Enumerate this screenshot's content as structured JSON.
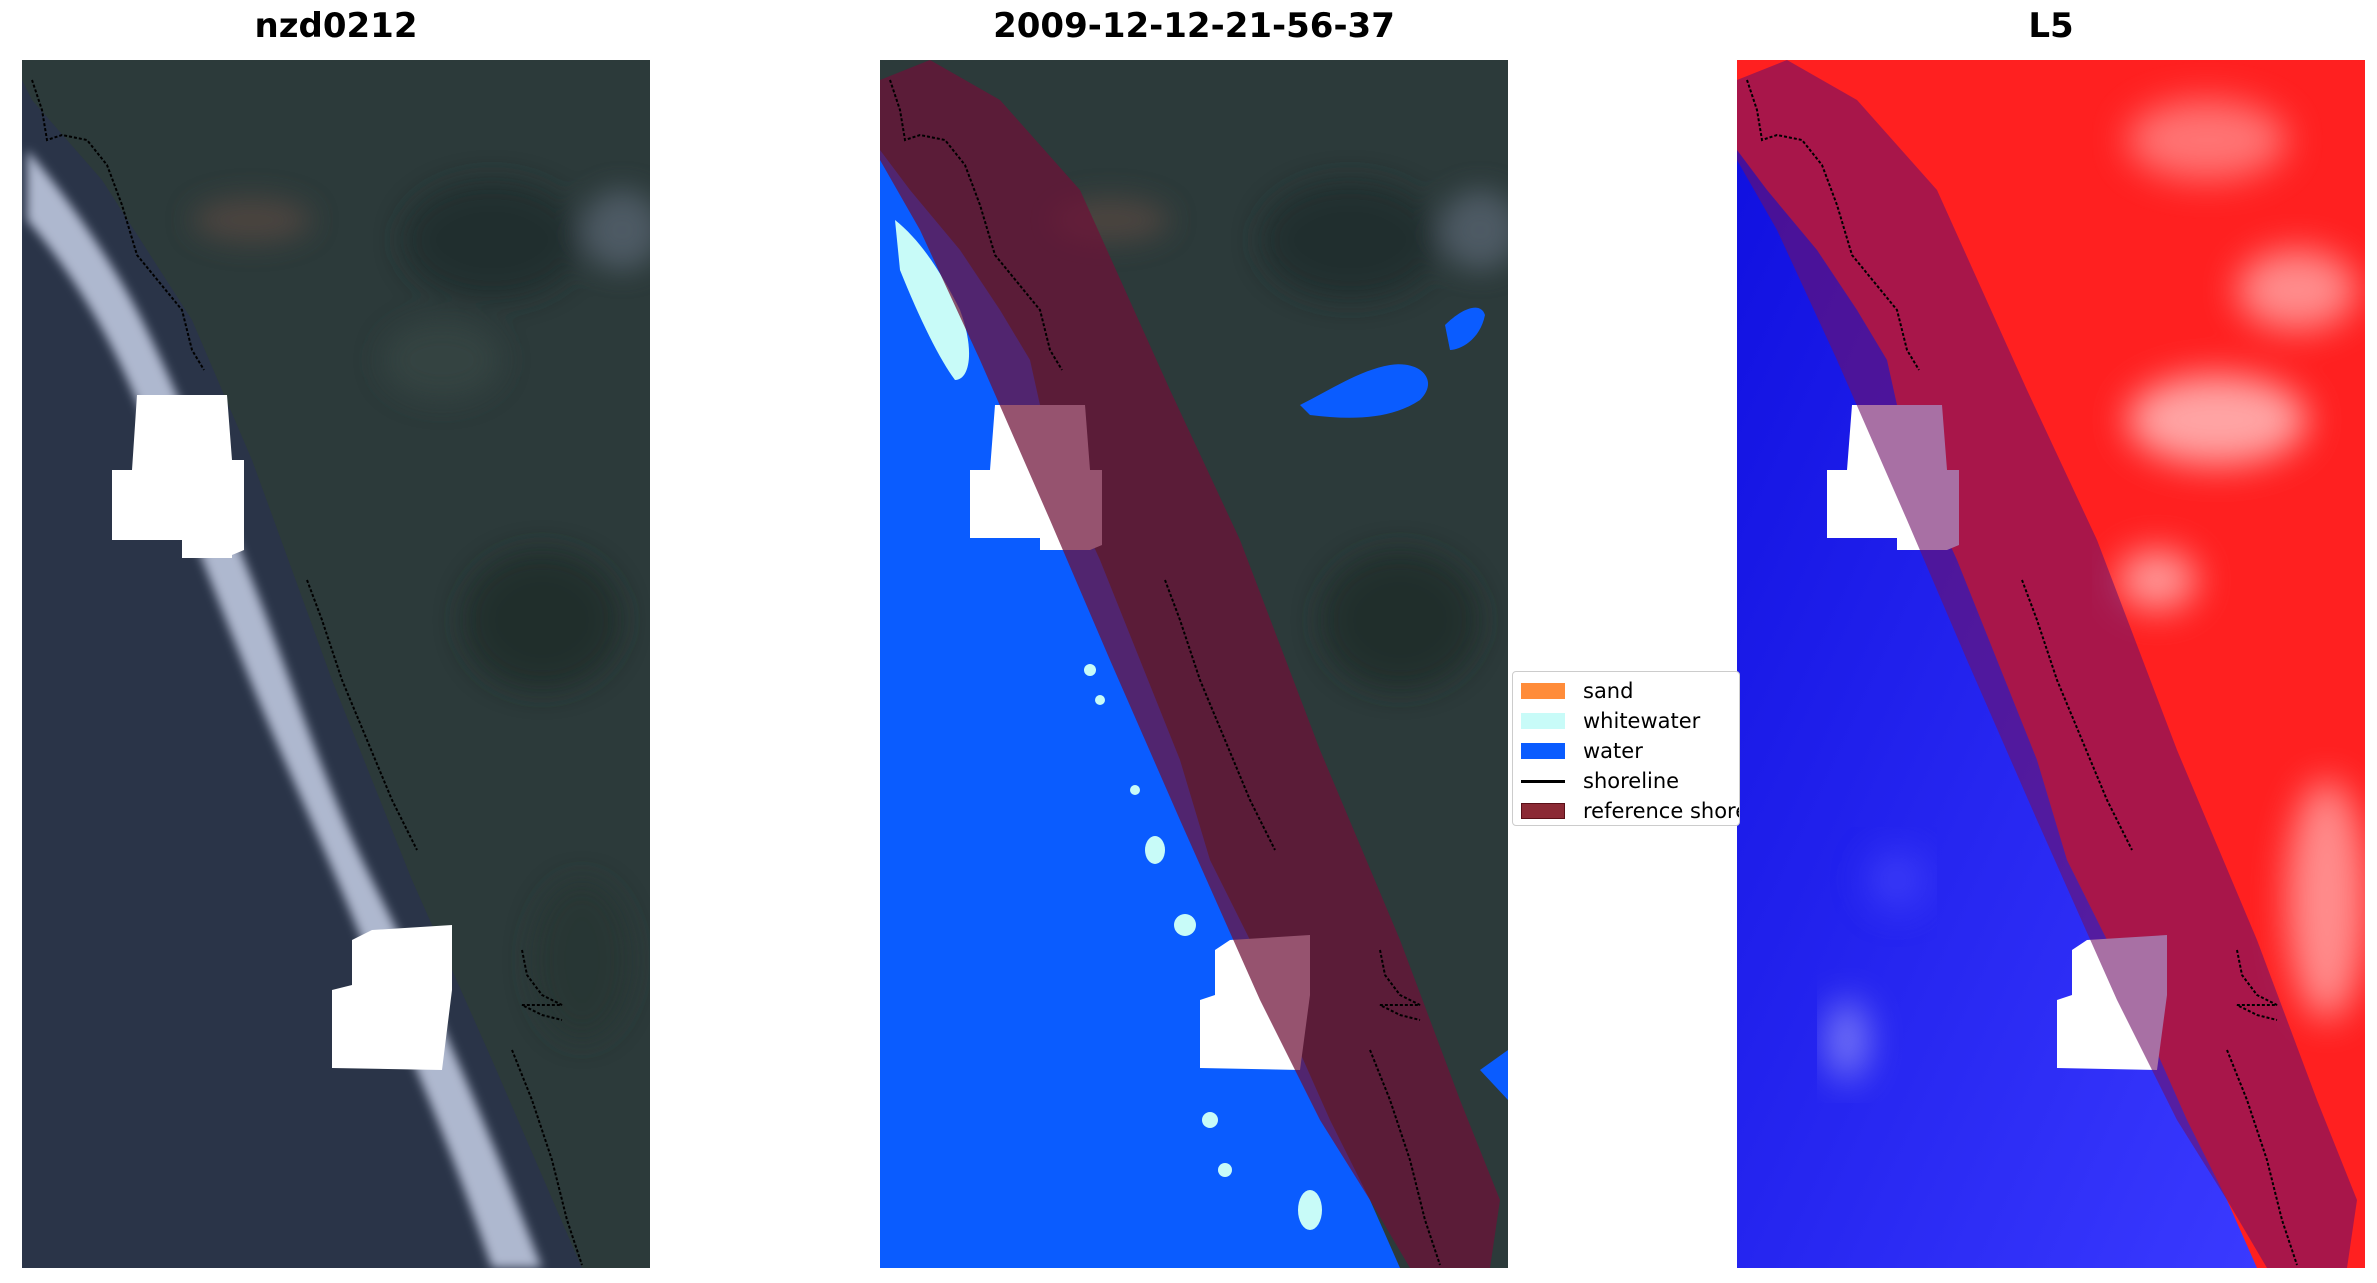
{
  "titles": {
    "left": "nzd0212",
    "middle": "2009-12-12-21-56-37",
    "right": "L5"
  },
  "legend": {
    "items": [
      {
        "label": "sand",
        "color": "#ff8c3a",
        "kind": "patch"
      },
      {
        "label": "whitewater",
        "color": "#c8fbf8",
        "kind": "patch"
      },
      {
        "label": "water",
        "color": "#0a5cff",
        "kind": "patch"
      },
      {
        "label": "shoreline",
        "color": "#000000",
        "kind": "line"
      },
      {
        "label": "reference shoreline",
        "color": "#8b2a35",
        "kind": "patch"
      }
    ]
  },
  "colors": {
    "rgb_land": "#2c3a3a",
    "rgb_ocean": "#2a3448",
    "surf": "#c6cfe6",
    "cloud_mask": "#ffffff",
    "water_class": "#0a5cff",
    "whitewater_class": "#c8fbf8",
    "reference_buffer": "#6e1038",
    "index_land": "#ff2020",
    "index_water": "#2020ff"
  }
}
